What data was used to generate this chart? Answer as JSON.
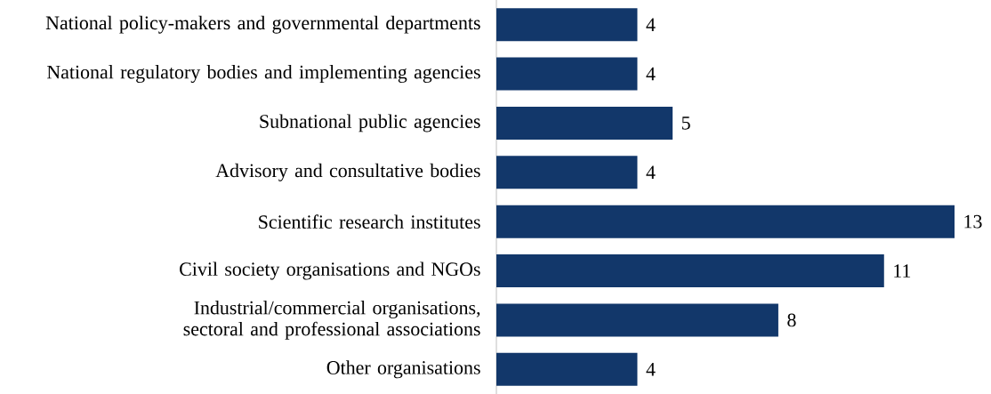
{
  "chart_data": {
    "type": "bar",
    "orientation": "horizontal",
    "categories": [
      "National policy-makers and governmental departments",
      "National regulatory bodies and implementing agencies",
      "Subnational public agencies",
      "Advisory and consultative bodies",
      "Scientific research institutes",
      "Civil society organisations and NGOs",
      "Industrial/commercial organisations, sectoral and professional associations",
      "Other organisations"
    ],
    "values": [
      4,
      4,
      5,
      4,
      13,
      11,
      8,
      4
    ],
    "color": "#12376a",
    "data_labels": true,
    "xlim": [
      0,
      13
    ]
  }
}
